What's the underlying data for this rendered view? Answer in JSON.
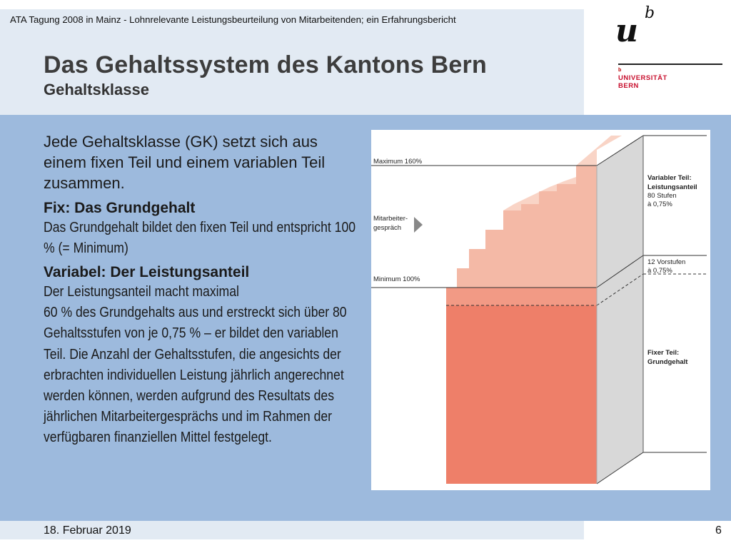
{
  "header": {
    "top_line": "ATA Tagung 2008 in Mainz  -  Lohnrelevante Leistungsbeurteilung von Mitarbeitenden; ein Erfahrungsbericht",
    "title": "Das Gehaltssystem des Kantons Bern",
    "subtitle": "Gehaltsklasse"
  },
  "logo": {
    "u": "u",
    "b": "b",
    "small_b": "b",
    "line1": "UNIVERSITÄT",
    "line2": "BERN"
  },
  "body": {
    "lead": "Jede Gehaltsklasse (GK) setzt sich aus einem fixen Teil und einem variablen Teil zusammen.",
    "fix_heading": "Fix: Das Grundgehalt",
    "fix_text": "Das Grundgehalt bildet den fixen Teil und entspricht 100 % (= Minimum)",
    "var_heading": "Variabel: Der Leistungsanteil",
    "var_text": "Der Leistungsanteil macht maximal\n60 % des Grundgehalts aus und erstreckt sich über 80 Gehaltsstufen von je 0,75 % – er bildet den variablen Teil. Die Anzahl der Gehaltsstufen, die angesichts der erbrachten individuellen Leistung jährlich angerechnet werden können, werden aufgrund des Resultats des jährlichen Mitarbeitergesprächs und im Rahmen der verfügbaren finanziellen Mittel festgelegt."
  },
  "diagram": {
    "maximum": "Maximum 160%",
    "minimum": "Minimum 100%",
    "mitarbeiter_1": "Mitarbeiter-",
    "mitarbeiter_2": "gespräch",
    "variabler_1": "Variabler Teil:",
    "variabler_2": "Leistungsanteil",
    "variabler_3": "80 Stufen",
    "variabler_4": "à 0,75%",
    "vorstufen_1": "12 Vorstufen",
    "vorstufen_2": "à 0,75%",
    "fixer_1": "Fixer Teil:",
    "fixer_2": "Grundgehalt",
    "colors": {
      "fix": "#ee7f69",
      "var": "#f4b9a6",
      "var_light": "#f9d4c6",
      "side": "#d8d8d8"
    }
  },
  "footer": {
    "date": "18. Februar 2019",
    "page": "6"
  }
}
